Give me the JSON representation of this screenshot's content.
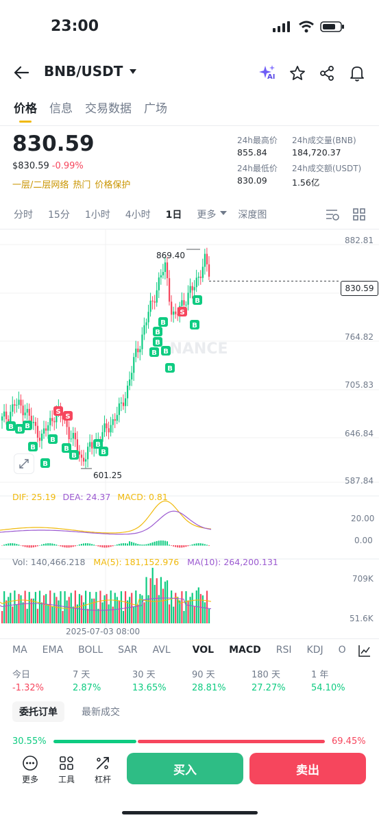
{
  "status": {
    "time": "23:00"
  },
  "header": {
    "pair": "BNB/USDT",
    "ai_badge": "AI",
    "icons": [
      "back-arrow-icon",
      "caret-down-icon",
      "ai-sparkle-icon",
      "star-icon",
      "share-icon",
      "bell-icon"
    ]
  },
  "tabs": [
    "价格",
    "信息",
    "交易数据",
    "广场"
  ],
  "price": {
    "last": "830.59",
    "usd": "$830.59",
    "change": "-0.99%",
    "tags": [
      "一层/二层网络",
      "热门",
      "价格保护"
    ]
  },
  "stats": {
    "high_label": "24h最高价",
    "high": "855.84",
    "vol_bnb_label": "24h成交量(BNB)",
    "vol_bnb": "184,720.37",
    "low_label": "24h最低价",
    "low": "830.09",
    "vol_usdt_label": "24h成交额(USDT)",
    "vol_usdt": "1.56亿"
  },
  "intervals": [
    "分时",
    "15分",
    "1小时",
    "4小时",
    "1日",
    "更多",
    "深度图"
  ],
  "chart": {
    "axis": [
      "882.81",
      "764.82",
      "705.83",
      "646.84",
      "587.84"
    ],
    "current_price_label": "830.59",
    "high_marker": "869.40",
    "low_marker": "601.25",
    "watermark": "NANCE",
    "macd": {
      "dif": "DIF: 25.19",
      "dea": "DEA: 24.37",
      "macd": "MACD: 0.81",
      "axis_top": "20.00",
      "axis_zero": "0.00"
    },
    "vol": {
      "vol": "Vol: 140,466.218",
      "ma5": "MA(5): 181,152.976",
      "ma10": "MA(10): 264,200.131",
      "axis_top": "709K",
      "axis_bottom": "51.6K"
    },
    "date_label": "2025-07-03 08:00",
    "colors": {
      "up": "#0ecb81",
      "down": "#f6465d",
      "dif": "#f0b90b",
      "dea": "#9b59d0"
    }
  },
  "indicators": [
    "MA",
    "EMA",
    "BOLL",
    "SAR",
    "AVL",
    "VOL",
    "MACD",
    "RSI",
    "KDJ",
    "O"
  ],
  "performance": [
    {
      "label": "今日",
      "value": "-1.32%",
      "dir": "down"
    },
    {
      "label": "7 天",
      "value": "2.87%",
      "dir": "up"
    },
    {
      "label": "30 天",
      "value": "13.65%",
      "dir": "up"
    },
    {
      "label": "90 天",
      "value": "28.81%",
      "dir": "up"
    },
    {
      "label": "180 天",
      "value": "27.27%",
      "dir": "up"
    },
    {
      "label": "1 年",
      "value": "54.10%",
      "dir": "up"
    }
  ],
  "order_tabs": [
    "委托订单",
    "最新成交"
  ],
  "ratio": {
    "buy": "30.55%",
    "sell": "69.45%",
    "buy_fraction": 0.3055
  },
  "bottom": {
    "more": "更多",
    "tools": "工具",
    "leverage": "杠杆",
    "buy": "买入",
    "sell": "卖出"
  }
}
